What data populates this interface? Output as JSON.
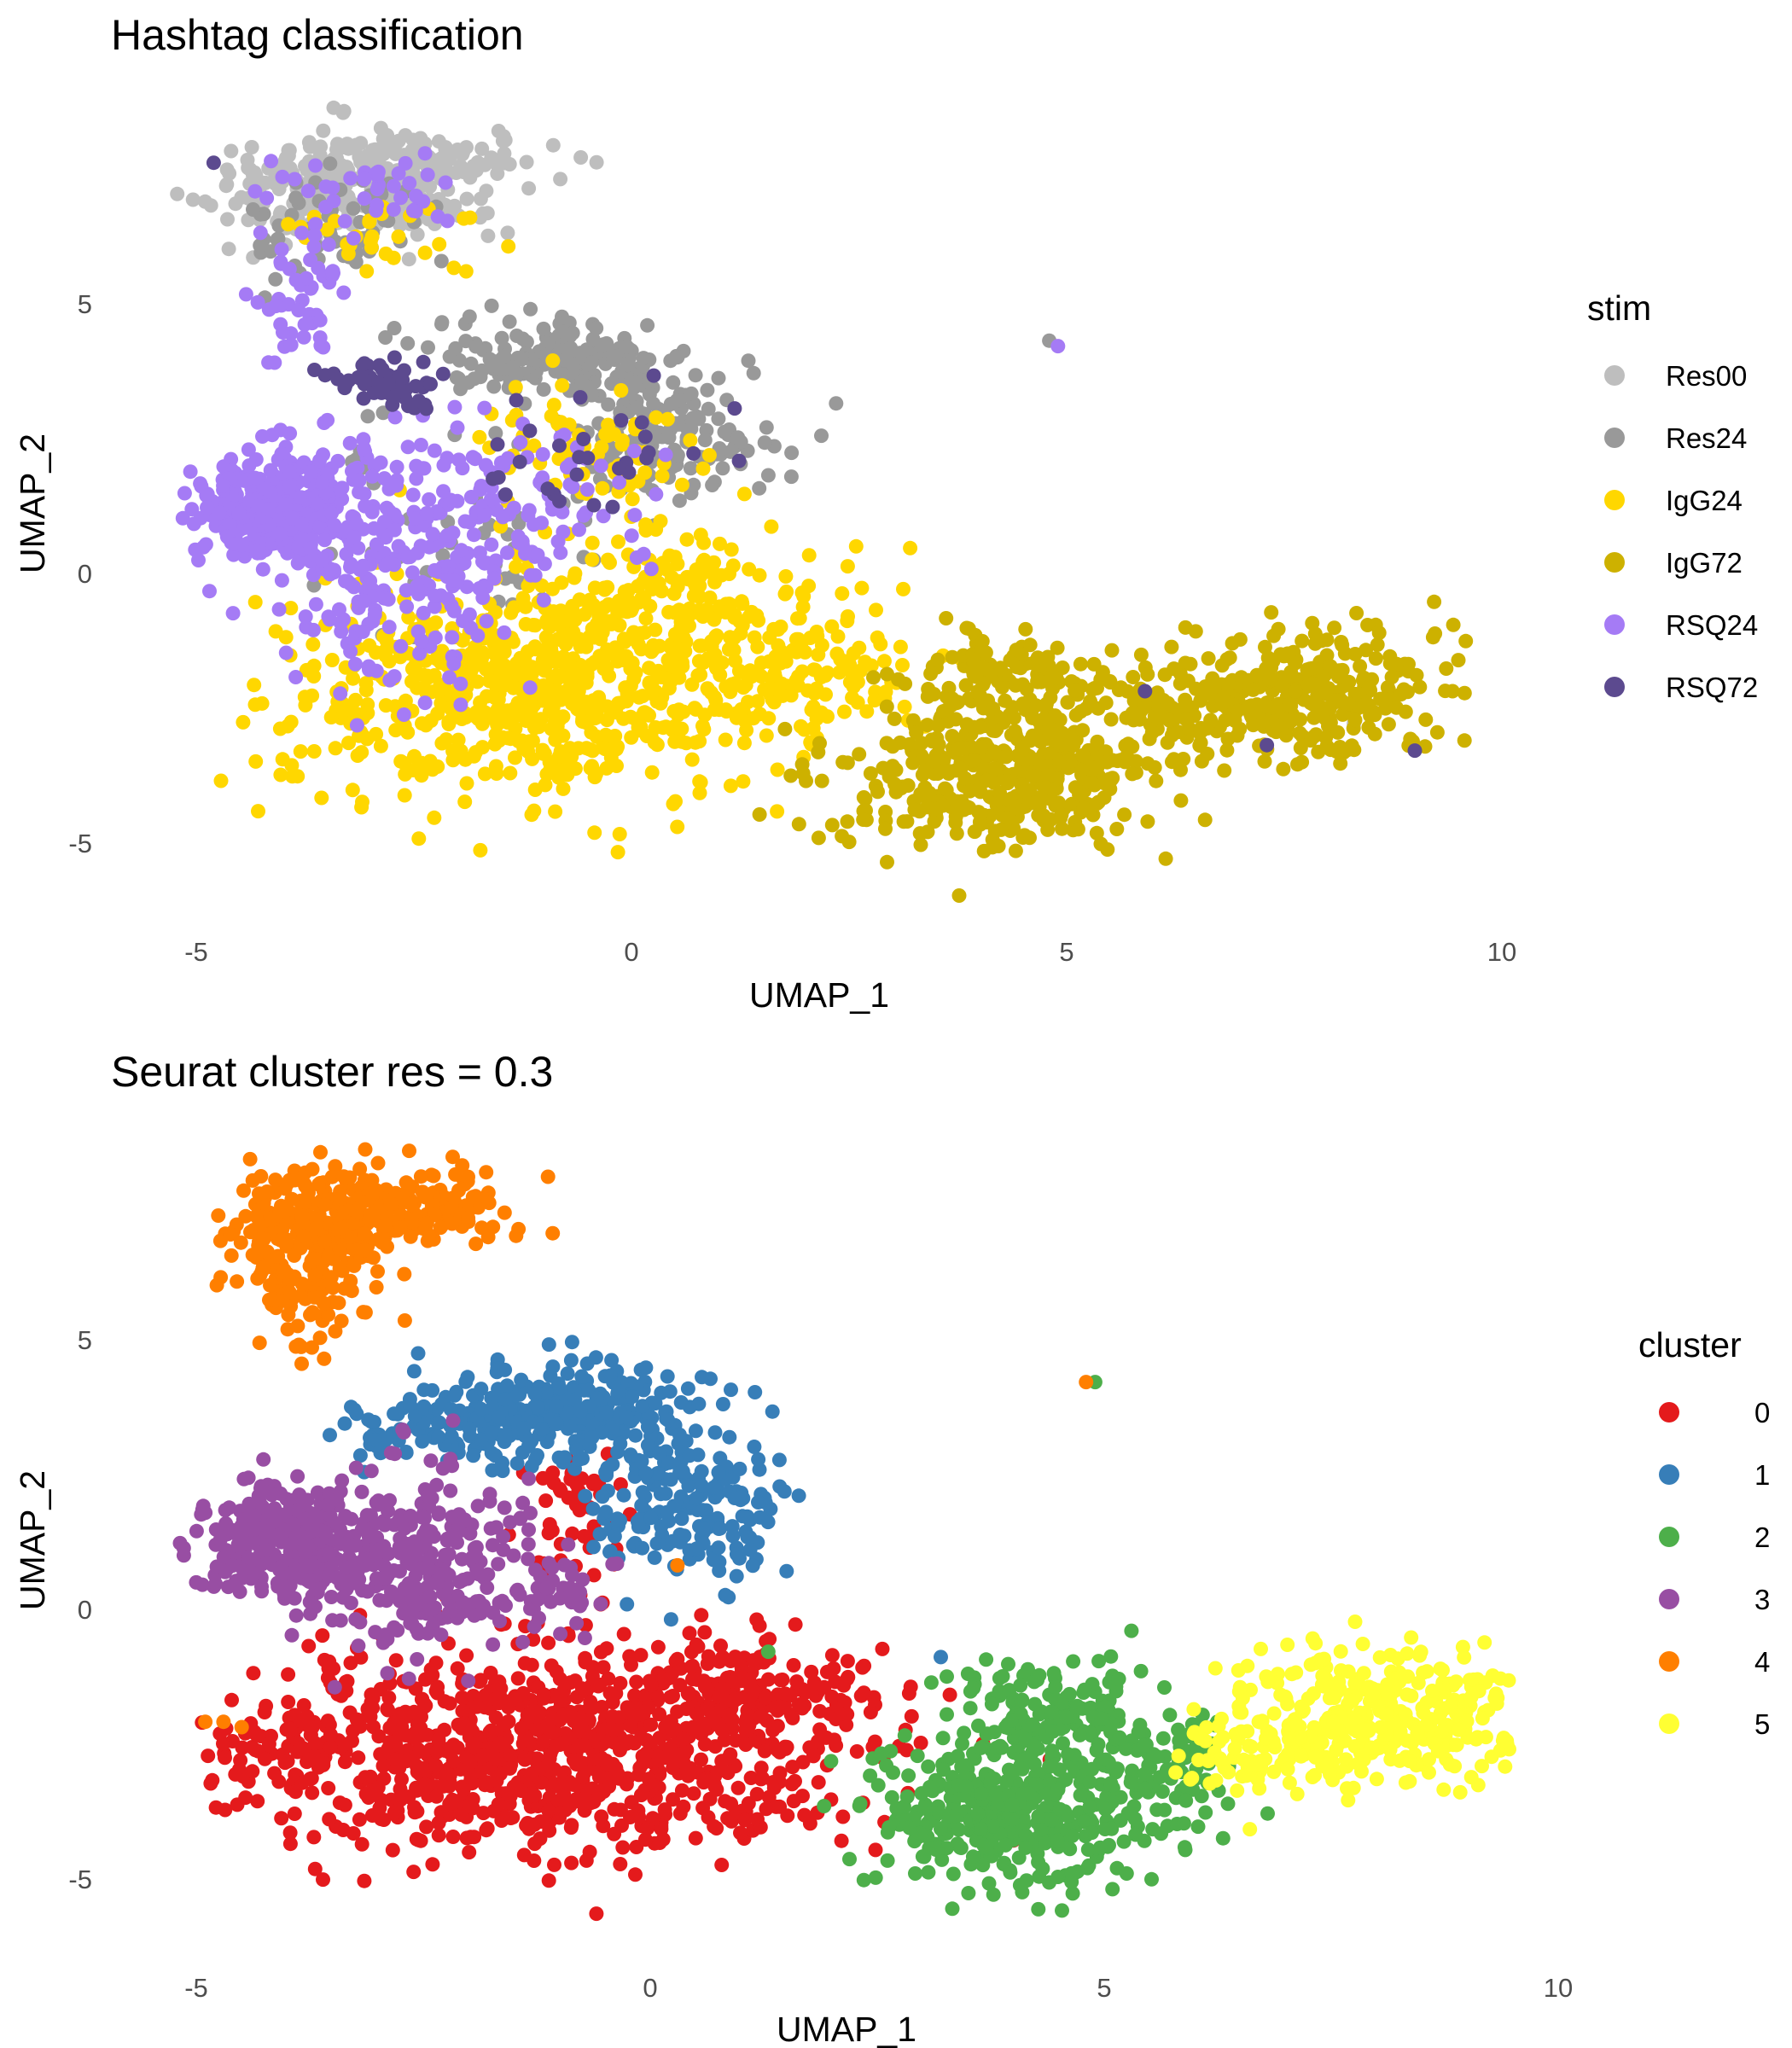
{
  "chart_data": [
    {
      "type": "scatter",
      "title": "Hashtag classification",
      "xlabel": "UMAP_1",
      "ylabel": "UMAP_2",
      "xlim": [
        -5.2,
        10.2
      ],
      "ylim": [
        -6.5,
        8.3
      ],
      "xticks": [
        -5,
        0,
        5,
        10
      ],
      "xtick_labels": [
        "-5",
        "0",
        "5",
        "10"
      ],
      "yticks": [
        5,
        0,
        -5
      ],
      "ytick_labels": [
        "5",
        "0",
        "-5"
      ],
      "grid": false,
      "legend_placement": "right",
      "legend_title": "stim",
      "series": [
        {
          "name": "Res00",
          "color": "#bebebe",
          "clusters": [
            {
              "cx": -3.3,
              "cy": 7.2,
              "sx": 1.2,
              "sy": 0.7,
              "n": 260
            },
            {
              "cx": -2.3,
              "cy": 7.6,
              "sx": 0.9,
              "sy": 0.4,
              "n": 80
            }
          ],
          "points": [
            [
              8.3,
              -2.8
            ]
          ]
        },
        {
          "name": "Res24",
          "color": "#999999",
          "clusters": [
            {
              "cx": -0.8,
              "cy": 4.0,
              "sx": 1.0,
              "sy": 0.45,
              "n": 170
            },
            {
              "cx": 0.4,
              "cy": 2.6,
              "sx": 0.9,
              "sy": 0.7,
              "n": 140
            },
            {
              "cx": -3.4,
              "cy": 6.4,
              "sx": 0.7,
              "sy": 0.7,
              "n": 60
            },
            {
              "cx": -2.0,
              "cy": 1.0,
              "sx": 1.2,
              "sy": 1.6,
              "n": 50
            }
          ],
          "points": [
            [
              4.8,
              4.3
            ]
          ]
        },
        {
          "name": "IgG24",
          "color": "#ffd700",
          "clusters": [
            {
              "cx": -1.0,
              "cy": -2.2,
              "sx": 2.0,
              "sy": 1.3,
              "n": 700
            },
            {
              "cx": 0.6,
              "cy": -0.6,
              "sx": 1.1,
              "sy": 1.0,
              "n": 160
            },
            {
              "cx": 2.0,
              "cy": -1.8,
              "sx": 0.9,
              "sy": 0.8,
              "n": 90
            },
            {
              "cx": -0.5,
              "cy": 2.2,
              "sx": 0.9,
              "sy": 0.9,
              "n": 70
            },
            {
              "cx": -3.0,
              "cy": 6.3,
              "sx": 0.9,
              "sy": 0.6,
              "n": 30
            }
          ],
          "points": []
        },
        {
          "name": "IgG72",
          "color": "#cdb100",
          "clusters": [
            {
              "cx": 4.2,
              "cy": -3.8,
              "sx": 1.2,
              "sy": 0.9,
              "n": 420
            },
            {
              "cx": 4.5,
              "cy": -2.0,
              "sx": 0.9,
              "sy": 0.6,
              "n": 120
            },
            {
              "cx": 7.8,
              "cy": -2.2,
              "sx": 1.0,
              "sy": 0.8,
              "n": 280
            },
            {
              "cx": 6.2,
              "cy": -2.5,
              "sx": 0.7,
              "sy": 0.7,
              "n": 90
            }
          ],
          "points": []
        },
        {
          "name": "RSQ24",
          "color": "#a57bf5",
          "clusters": [
            {
              "cx": -4.1,
              "cy": 1.2,
              "sx": 0.6,
              "sy": 0.7,
              "n": 320
            },
            {
              "cx": -2.6,
              "cy": 0.3,
              "sx": 0.9,
              "sy": 1.5,
              "n": 260
            },
            {
              "cx": -3.8,
              "cy": 5.0,
              "sx": 0.35,
              "sy": 0.9,
              "n": 50
            },
            {
              "cx": -0.8,
              "cy": 1.4,
              "sx": 0.9,
              "sy": 0.9,
              "n": 60
            },
            {
              "cx": -3.0,
              "cy": 7.1,
              "sx": 0.8,
              "sy": 0.5,
              "n": 40
            }
          ],
          "points": [
            [
              4.9,
              4.2
            ]
          ]
        },
        {
          "name": "RSQ72",
          "color": "#5c4a8f",
          "clusters": [
            {
              "cx": -2.8,
              "cy": 3.5,
              "sx": 0.45,
              "sy": 0.25,
              "n": 60
            },
            {
              "cx": -0.3,
              "cy": 2.3,
              "sx": 0.9,
              "sy": 0.8,
              "n": 30
            }
          ],
          "points": [
            [
              -4.8,
              7.6
            ],
            [
              5.9,
              -2.2
            ],
            [
              7.3,
              -3.2
            ],
            [
              9.0,
              -3.3
            ]
          ]
        }
      ]
    },
    {
      "type": "scatter",
      "title": "Seurat cluster res = 0.3",
      "xlabel": "UMAP_1",
      "ylabel": "UMAP_2",
      "xlim": [
        -5.2,
        10.2
      ],
      "ylim": [
        -6.5,
        8.3
      ],
      "xticks": [
        -5,
        0,
        5,
        10
      ],
      "xtick_labels": [
        "-5",
        "0",
        "5",
        "10"
      ],
      "yticks": [
        5,
        0,
        -5
      ],
      "ytick_labels": [
        "5",
        "0",
        "-5"
      ],
      "grid": false,
      "legend_placement": "right",
      "legend_title": "cluster",
      "series": [
        {
          "name": "0",
          "color": "#e41a1c",
          "clusters": [
            {
              "cx": -1.2,
              "cy": -2.6,
              "sx": 2.1,
              "sy": 1.2,
              "n": 900
            },
            {
              "cx": 1.3,
              "cy": -1.6,
              "sx": 0.9,
              "sy": 0.7,
              "n": 160
            },
            {
              "cx": -0.8,
              "cy": 1.5,
              "sx": 0.4,
              "sy": 0.9,
              "n": 50
            },
            {
              "cx": -4.0,
              "cy": -2.6,
              "sx": 0.5,
              "sy": 0.6,
              "n": 60
            }
          ],
          "points": [
            [
              4.4,
              -2.8
            ],
            [
              4.2,
              -4.4
            ],
            [
              4.0,
              -4.3
            ],
            [
              3.3,
              -1.6
            ]
          ]
        },
        {
          "name": "1",
          "color": "#377eb8",
          "clusters": [
            {
              "cx": -1.0,
              "cy": 3.6,
              "sx": 1.1,
              "sy": 0.6,
              "n": 320
            },
            {
              "cx": 0.4,
              "cy": 1.8,
              "sx": 0.7,
              "sy": 0.9,
              "n": 180
            },
            {
              "cx": -2.7,
              "cy": 3.3,
              "sx": 0.5,
              "sy": 0.3,
              "n": 40
            }
          ],
          "points": [
            [
              3.2,
              -0.9
            ],
            [
              -2.6,
              4.4
            ]
          ]
        },
        {
          "name": "2",
          "color": "#4daf4a",
          "clusters": [
            {
              "cx": 4.0,
              "cy": -3.8,
              "sx": 1.1,
              "sy": 0.9,
              "n": 420
            },
            {
              "cx": 4.4,
              "cy": -2.0,
              "sx": 0.8,
              "sy": 0.6,
              "n": 150
            },
            {
              "cx": 5.8,
              "cy": -2.9,
              "sx": 0.4,
              "sy": 0.6,
              "n": 60
            }
          ],
          "points": [
            [
              6.8,
              -3.8
            ],
            [
              1.3,
              -0.8
            ],
            [
              4.9,
              4.2
            ]
          ]
        },
        {
          "name": "3",
          "color": "#984ea3",
          "clusters": [
            {
              "cx": -4.0,
              "cy": 1.2,
              "sx": 0.6,
              "sy": 0.7,
              "n": 320
            },
            {
              "cx": -2.6,
              "cy": 0.8,
              "sx": 0.8,
              "sy": 1.1,
              "n": 260
            },
            {
              "cx": -1.0,
              "cy": 0.3,
              "sx": 0.4,
              "sy": 0.5,
              "n": 40
            }
          ],
          "points": []
        },
        {
          "name": "4",
          "color": "#ff7f00",
          "clusters": [
            {
              "cx": -3.7,
              "cy": 7.0,
              "sx": 0.6,
              "sy": 0.8,
              "n": 280
            },
            {
              "cx": -2.5,
              "cy": 7.5,
              "sx": 0.7,
              "sy": 0.45,
              "n": 120
            },
            {
              "cx": -3.8,
              "cy": 5.2,
              "sx": 0.35,
              "sy": 0.6,
              "n": 30
            }
          ],
          "points": [
            [
              4.8,
              4.2
            ],
            [
              -4.9,
              -2.1
            ],
            [
              -4.7,
              -2.1
            ],
            [
              -4.5,
              -2.2
            ],
            [
              0.3,
              0.8
            ]
          ]
        },
        {
          "name": "5",
          "color": "#ffff33",
          "clusters": [
            {
              "cx": 8.0,
              "cy": -2.0,
              "sx": 1.0,
              "sy": 0.8,
              "n": 330
            },
            {
              "cx": 6.5,
              "cy": -2.8,
              "sx": 0.5,
              "sy": 0.6,
              "n": 60
            }
          ],
          "points": []
        }
      ]
    }
  ]
}
